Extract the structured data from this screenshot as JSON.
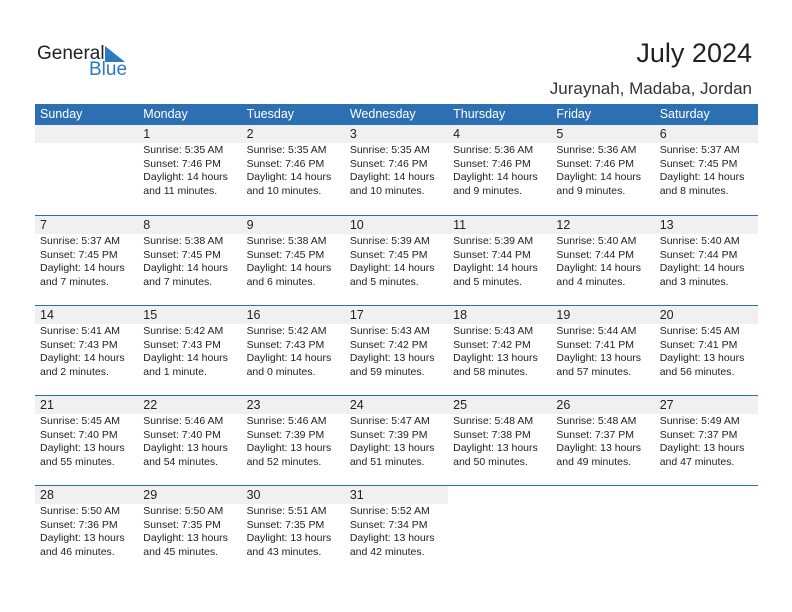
{
  "logo": {
    "line1": "General",
    "line2": "Blue"
  },
  "header": {
    "title": "July 2024",
    "location": "Juraynah, Madaba, Jordan"
  },
  "days_of_week": [
    "Sunday",
    "Monday",
    "Tuesday",
    "Wednesday",
    "Thursday",
    "Friday",
    "Saturday"
  ],
  "colors": {
    "header_bg": "#2d6fb3",
    "logo_blue": "#2a7ac0"
  },
  "weeks": [
    [
      null,
      {
        "date": "1",
        "sunrise": "Sunrise: 5:35 AM",
        "sunset": "Sunset: 7:46 PM",
        "daylight": "Daylight: 14 hours",
        "minutes": "and 11 minutes."
      },
      {
        "date": "2",
        "sunrise": "Sunrise: 5:35 AM",
        "sunset": "Sunset: 7:46 PM",
        "daylight": "Daylight: 14 hours",
        "minutes": "and 10 minutes."
      },
      {
        "date": "3",
        "sunrise": "Sunrise: 5:35 AM",
        "sunset": "Sunset: 7:46 PM",
        "daylight": "Daylight: 14 hours",
        "minutes": "and 10 minutes."
      },
      {
        "date": "4",
        "sunrise": "Sunrise: 5:36 AM",
        "sunset": "Sunset: 7:46 PM",
        "daylight": "Daylight: 14 hours",
        "minutes": "and 9 minutes."
      },
      {
        "date": "5",
        "sunrise": "Sunrise: 5:36 AM",
        "sunset": "Sunset: 7:46 PM",
        "daylight": "Daylight: 14 hours",
        "minutes": "and 9 minutes."
      },
      {
        "date": "6",
        "sunrise": "Sunrise: 5:37 AM",
        "sunset": "Sunset: 7:45 PM",
        "daylight": "Daylight: 14 hours",
        "minutes": "and 8 minutes."
      }
    ],
    [
      {
        "date": "7",
        "sunrise": "Sunrise: 5:37 AM",
        "sunset": "Sunset: 7:45 PM",
        "daylight": "Daylight: 14 hours",
        "minutes": "and 7 minutes."
      },
      {
        "date": "8",
        "sunrise": "Sunrise: 5:38 AM",
        "sunset": "Sunset: 7:45 PM",
        "daylight": "Daylight: 14 hours",
        "minutes": "and 7 minutes."
      },
      {
        "date": "9",
        "sunrise": "Sunrise: 5:38 AM",
        "sunset": "Sunset: 7:45 PM",
        "daylight": "Daylight: 14 hours",
        "minutes": "and 6 minutes."
      },
      {
        "date": "10",
        "sunrise": "Sunrise: 5:39 AM",
        "sunset": "Sunset: 7:45 PM",
        "daylight": "Daylight: 14 hours",
        "minutes": "and 5 minutes."
      },
      {
        "date": "11",
        "sunrise": "Sunrise: 5:39 AM",
        "sunset": "Sunset: 7:44 PM",
        "daylight": "Daylight: 14 hours",
        "minutes": "and 5 minutes."
      },
      {
        "date": "12",
        "sunrise": "Sunrise: 5:40 AM",
        "sunset": "Sunset: 7:44 PM",
        "daylight": "Daylight: 14 hours",
        "minutes": "and 4 minutes."
      },
      {
        "date": "13",
        "sunrise": "Sunrise: 5:40 AM",
        "sunset": "Sunset: 7:44 PM",
        "daylight": "Daylight: 14 hours",
        "minutes": "and 3 minutes."
      }
    ],
    [
      {
        "date": "14",
        "sunrise": "Sunrise: 5:41 AM",
        "sunset": "Sunset: 7:43 PM",
        "daylight": "Daylight: 14 hours",
        "minutes": "and 2 minutes."
      },
      {
        "date": "15",
        "sunrise": "Sunrise: 5:42 AM",
        "sunset": "Sunset: 7:43 PM",
        "daylight": "Daylight: 14 hours",
        "minutes": "and 1 minute."
      },
      {
        "date": "16",
        "sunrise": "Sunrise: 5:42 AM",
        "sunset": "Sunset: 7:43 PM",
        "daylight": "Daylight: 14 hours",
        "minutes": "and 0 minutes."
      },
      {
        "date": "17",
        "sunrise": "Sunrise: 5:43 AM",
        "sunset": "Sunset: 7:42 PM",
        "daylight": "Daylight: 13 hours",
        "minutes": "and 59 minutes."
      },
      {
        "date": "18",
        "sunrise": "Sunrise: 5:43 AM",
        "sunset": "Sunset: 7:42 PM",
        "daylight": "Daylight: 13 hours",
        "minutes": "and 58 minutes."
      },
      {
        "date": "19",
        "sunrise": "Sunrise: 5:44 AM",
        "sunset": "Sunset: 7:41 PM",
        "daylight": "Daylight: 13 hours",
        "minutes": "and 57 minutes."
      },
      {
        "date": "20",
        "sunrise": "Sunrise: 5:45 AM",
        "sunset": "Sunset: 7:41 PM",
        "daylight": "Daylight: 13 hours",
        "minutes": "and 56 minutes."
      }
    ],
    [
      {
        "date": "21",
        "sunrise": "Sunrise: 5:45 AM",
        "sunset": "Sunset: 7:40 PM",
        "daylight": "Daylight: 13 hours",
        "minutes": "and 55 minutes."
      },
      {
        "date": "22",
        "sunrise": "Sunrise: 5:46 AM",
        "sunset": "Sunset: 7:40 PM",
        "daylight": "Daylight: 13 hours",
        "minutes": "and 54 minutes."
      },
      {
        "date": "23",
        "sunrise": "Sunrise: 5:46 AM",
        "sunset": "Sunset: 7:39 PM",
        "daylight": "Daylight: 13 hours",
        "minutes": "and 52 minutes."
      },
      {
        "date": "24",
        "sunrise": "Sunrise: 5:47 AM",
        "sunset": "Sunset: 7:39 PM",
        "daylight": "Daylight: 13 hours",
        "minutes": "and 51 minutes."
      },
      {
        "date": "25",
        "sunrise": "Sunrise: 5:48 AM",
        "sunset": "Sunset: 7:38 PM",
        "daylight": "Daylight: 13 hours",
        "minutes": "and 50 minutes."
      },
      {
        "date": "26",
        "sunrise": "Sunrise: 5:48 AM",
        "sunset": "Sunset: 7:37 PM",
        "daylight": "Daylight: 13 hours",
        "minutes": "and 49 minutes."
      },
      {
        "date": "27",
        "sunrise": "Sunrise: 5:49 AM",
        "sunset": "Sunset: 7:37 PM",
        "daylight": "Daylight: 13 hours",
        "minutes": "and 47 minutes."
      }
    ],
    [
      {
        "date": "28",
        "sunrise": "Sunrise: 5:50 AM",
        "sunset": "Sunset: 7:36 PM",
        "daylight": "Daylight: 13 hours",
        "minutes": "and 46 minutes."
      },
      {
        "date": "29",
        "sunrise": "Sunrise: 5:50 AM",
        "sunset": "Sunset: 7:35 PM",
        "daylight": "Daylight: 13 hours",
        "minutes": "and 45 minutes."
      },
      {
        "date": "30",
        "sunrise": "Sunrise: 5:51 AM",
        "sunset": "Sunset: 7:35 PM",
        "daylight": "Daylight: 13 hours",
        "minutes": "and 43 minutes."
      },
      {
        "date": "31",
        "sunrise": "Sunrise: 5:52 AM",
        "sunset": "Sunset: 7:34 PM",
        "daylight": "Daylight: 13 hours",
        "minutes": "and 42 minutes."
      },
      null,
      null,
      null
    ]
  ]
}
